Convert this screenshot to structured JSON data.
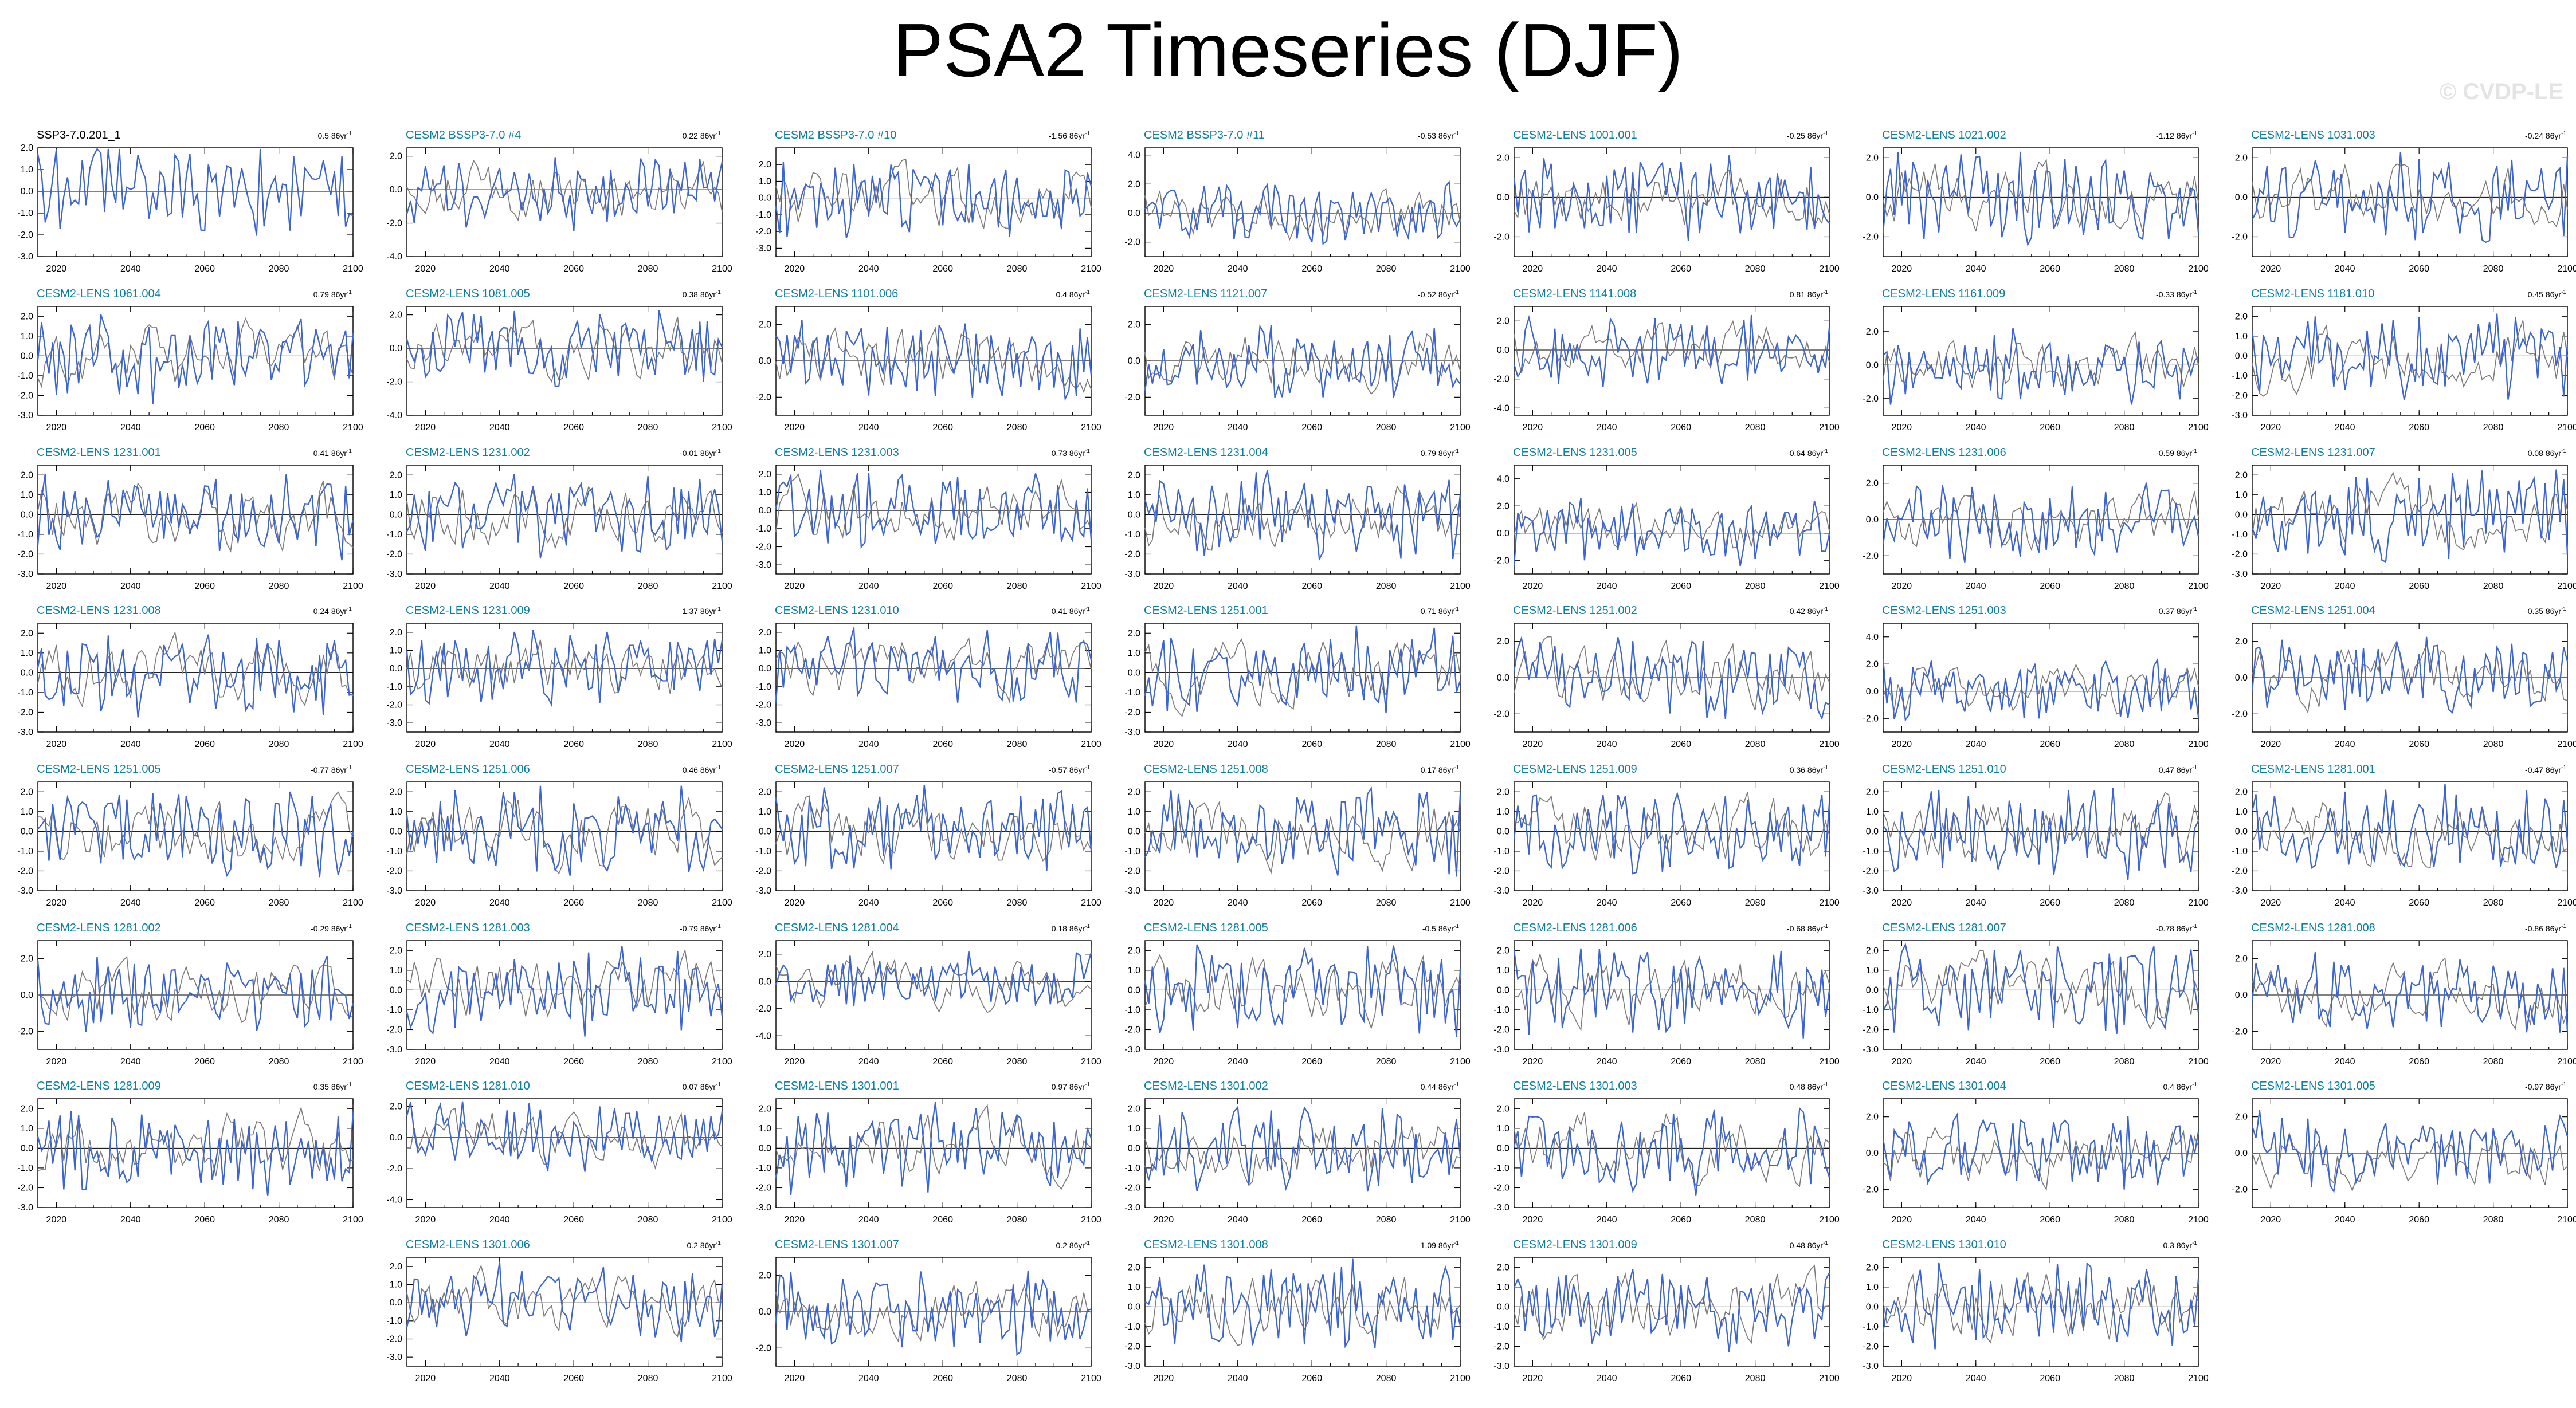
{
  "title": "PSA2 Timeseries (DJF)",
  "watermark": "© CVDP-LE",
  "chart_data": {
    "type": "line",
    "xlim": [
      2015,
      2100
    ],
    "xticks": [
      "2020",
      "2040",
      "2060",
      "2080",
      "2100"
    ],
    "colors": {
      "ensemble_member": "#3c64d2",
      "ensemble_mean": "#7c7c7c",
      "obs_title": "#000000",
      "member_title": "#0b7fa6"
    },
    "grid": false,
    "note_series": "Each panel: member PSA2 index (blue) with ensemble-mean index (grey), DJF 2015-2100; values are approximate.",
    "panels": [
      {
        "title": "SSP3-7.0.201_1",
        "trend": "0.5 86yr",
        "ylim": [
          -3,
          2
        ],
        "yticks": [
          "2.0",
          "1.0",
          "0.0",
          "-1.0",
          "-2.0",
          "-3.0"
        ],
        "seed": 11,
        "amp": 1.1,
        "obs": true
      },
      {
        "title": "CESM2 BSSP3-7.0 #4",
        "trend": "0.22 86yr",
        "ylim": [
          -4,
          2.5
        ],
        "yticks": [
          "2.0",
          "0.0",
          "-2.0",
          "-4.0"
        ],
        "seed": 12,
        "amp": 1.2
      },
      {
        "title": "CESM2 BSSP3-7.0 #10",
        "trend": "-1.56 86yr",
        "ylim": [
          -3.5,
          3
        ],
        "yticks": [
          "2.0",
          "1.0",
          "0.0",
          "-1.0",
          "-2.0",
          "-3.0"
        ],
        "seed": 13,
        "amp": 1.2
      },
      {
        "title": "CESM2 BSSP3-7.0 #11",
        "trend": "-0.53 86yr",
        "ylim": [
          -3,
          4.5
        ],
        "yticks": [
          "4.0",
          "2.0",
          "0.0",
          "-2.0"
        ],
        "seed": 14,
        "amp": 1.1
      },
      {
        "title": "CESM2-LENS 1001.001",
        "trend": "-0.25 86yr",
        "ylim": [
          -3,
          2.5
        ],
        "yticks": [
          "2.0",
          "0.0",
          "-2.0"
        ],
        "seed": 15,
        "amp": 1.1
      },
      {
        "title": "CESM2-LENS 1021.002",
        "trend": "-1.12 86yr",
        "ylim": [
          -3,
          2.5
        ],
        "yticks": [
          "2.0",
          "0.0",
          "-2.0"
        ],
        "seed": 16,
        "amp": 1.1
      },
      {
        "title": "CESM2-LENS 1031.003",
        "trend": "-0.24 86yr",
        "ylim": [
          -3,
          2.5
        ],
        "yticks": [
          "2.0",
          "0.0",
          "-2.0"
        ],
        "seed": 17,
        "amp": 1.1
      },
      {
        "title": "CESM2-LENS 1061.004",
        "trend": "0.79 86yr",
        "ylim": [
          -3,
          2.5
        ],
        "yticks": [
          "2.0",
          "1.0",
          "0.0",
          "-1.0",
          "-2.0",
          "-3.0"
        ],
        "seed": 18,
        "amp": 1.1
      },
      {
        "title": "CESM2-LENS 1081.005",
        "trend": "0.38 86yr",
        "ylim": [
          -4,
          2.5
        ],
        "yticks": [
          "2.0",
          "0.0",
          "-2.0",
          "-4.0"
        ],
        "seed": 19,
        "amp": 1.2
      },
      {
        "title": "CESM2-LENS 1101.006",
        "trend": "0.4 86yr",
        "ylim": [
          -3,
          3
        ],
        "yticks": [
          "2.0",
          "0.0",
          "-2.0"
        ],
        "seed": 20,
        "amp": 1.1
      },
      {
        "title": "CESM2-LENS 1121.007",
        "trend": "-0.52 86yr",
        "ylim": [
          -3,
          3
        ],
        "yticks": [
          "2.0",
          "0.0",
          "-2.0"
        ],
        "seed": 21,
        "amp": 1.1
      },
      {
        "title": "CESM2-LENS 1141.008",
        "trend": "0.81 86yr",
        "ylim": [
          -4.5,
          3
        ],
        "yticks": [
          "2.0",
          "0.0",
          "-2.0",
          "-4.0"
        ],
        "seed": 22,
        "amp": 1.2
      },
      {
        "title": "CESM2-LENS 1161.009",
        "trend": "-0.33 86yr",
        "ylim": [
          -3,
          3.5
        ],
        "yticks": [
          "2.0",
          "0.0",
          "-2.0"
        ],
        "seed": 23,
        "amp": 1.1
      },
      {
        "title": "CESM2-LENS 1181.010",
        "trend": "0.45 86yr",
        "ylim": [
          -3,
          2.5
        ],
        "yticks": [
          "2.0",
          "1.0",
          "0.0",
          "-1.0",
          "-2.0",
          "-3.0"
        ],
        "seed": 24,
        "amp": 1.1
      },
      {
        "title": "CESM2-LENS 1231.001",
        "trend": "0.41 86yr",
        "ylim": [
          -3,
          2.5
        ],
        "yticks": [
          "2.0",
          "1.0",
          "0.0",
          "-1.0",
          "-2.0",
          "-3.0"
        ],
        "seed": 25,
        "amp": 1.1
      },
      {
        "title": "CESM2-LENS 1231.002",
        "trend": "-0.01 86yr",
        "ylim": [
          -3,
          2.5
        ],
        "yticks": [
          "2.0",
          "1.0",
          "0.0",
          "-1.0",
          "-2.0",
          "-3.0"
        ],
        "seed": 26,
        "amp": 1.1
      },
      {
        "title": "CESM2-LENS 1231.003",
        "trend": "0.73 86yr",
        "ylim": [
          -3.5,
          2.5
        ],
        "yticks": [
          "2.0",
          "1.0",
          "0.0",
          "-1.0",
          "-2.0",
          "-3.0"
        ],
        "seed": 27,
        "amp": 1.1
      },
      {
        "title": "CESM2-LENS 1231.004",
        "trend": "0.79 86yr",
        "ylim": [
          -3,
          2.5
        ],
        "yticks": [
          "2.0",
          "1.0",
          "0.0",
          "-1.0",
          "-2.0",
          "-3.0"
        ],
        "seed": 28,
        "amp": 1.1
      },
      {
        "title": "CESM2-LENS 1231.005",
        "trend": "-0.64 86yr",
        "ylim": [
          -3,
          5
        ],
        "yticks": [
          "4.0",
          "2.0",
          "0.0",
          "-2.0"
        ],
        "seed": 29,
        "amp": 1.2
      },
      {
        "title": "CESM2-LENS 1231.006",
        "trend": "-0.59 86yr",
        "ylim": [
          -3,
          3
        ],
        "yticks": [
          "2.0",
          "0.0",
          "-2.0"
        ],
        "seed": 30,
        "amp": 1.1
      },
      {
        "title": "CESM2-LENS 1231.007",
        "trend": "0.08 86yr",
        "ylim": [
          -3,
          2.5
        ],
        "yticks": [
          "2.0",
          "1.0",
          "0.0",
          "-1.0",
          "-2.0",
          "-3.0"
        ],
        "seed": 31,
        "amp": 1.1
      },
      {
        "title": "CESM2-LENS 1231.008",
        "trend": "0.24 86yr",
        "ylim": [
          -3,
          2.5
        ],
        "yticks": [
          "2.0",
          "1.0",
          "0.0",
          "-1.0",
          "-2.0",
          "-3.0"
        ],
        "seed": 32,
        "amp": 1.1
      },
      {
        "title": "CESM2-LENS 1231.009",
        "trend": "1.37 86yr",
        "ylim": [
          -3.5,
          2.5
        ],
        "yticks": [
          "2.0",
          "1.0",
          "0.0",
          "-1.0",
          "-2.0",
          "-3.0"
        ],
        "seed": 33,
        "amp": 1.1
      },
      {
        "title": "CESM2-LENS 1231.010",
        "trend": "0.41 86yr",
        "ylim": [
          -3.5,
          2.5
        ],
        "yticks": [
          "2.0",
          "1.0",
          "0.0",
          "-1.0",
          "-2.0",
          "-3.0"
        ],
        "seed": 34,
        "amp": 1.1
      },
      {
        "title": "CESM2-LENS 1251.001",
        "trend": "-0.71 86yr",
        "ylim": [
          -3,
          2.5
        ],
        "yticks": [
          "2.0",
          "1.0",
          "0.0",
          "-1.0",
          "-2.0",
          "-3.0"
        ],
        "seed": 35,
        "amp": 1.1
      },
      {
        "title": "CESM2-LENS 1251.002",
        "trend": "-0.42 86yr",
        "ylim": [
          -3,
          3
        ],
        "yticks": [
          "2.0",
          "0.0",
          "-2.0"
        ],
        "seed": 36,
        "amp": 1.1
      },
      {
        "title": "CESM2-LENS 1251.003",
        "trend": "-0.37 86yr",
        "ylim": [
          -3,
          5
        ],
        "yticks": [
          "4.0",
          "2.0",
          "0.0",
          "-2.0"
        ],
        "seed": 37,
        "amp": 1.2
      },
      {
        "title": "CESM2-LENS 1251.004",
        "trend": "-0.35 86yr",
        "ylim": [
          -3,
          3
        ],
        "yticks": [
          "2.0",
          "0.0",
          "-2.0"
        ],
        "seed": 38,
        "amp": 1.1
      },
      {
        "title": "CESM2-LENS 1251.005",
        "trend": "-0.77 86yr",
        "ylim": [
          -3,
          2.5
        ],
        "yticks": [
          "2.0",
          "1.0",
          "0.0",
          "-1.0",
          "-2.0",
          "-3.0"
        ],
        "seed": 39,
        "amp": 1.1
      },
      {
        "title": "CESM2-LENS 1251.006",
        "trend": "0.46 86yr",
        "ylim": [
          -3,
          2.5
        ],
        "yticks": [
          "2.0",
          "1.0",
          "0.0",
          "-1.0",
          "-2.0",
          "-3.0"
        ],
        "seed": 40,
        "amp": 1.1
      },
      {
        "title": "CESM2-LENS 1251.007",
        "trend": "-0.57 86yr",
        "ylim": [
          -3,
          2.5
        ],
        "yticks": [
          "2.0",
          "1.0",
          "0.0",
          "-1.0",
          "-2.0",
          "-3.0"
        ],
        "seed": 41,
        "amp": 1.1
      },
      {
        "title": "CESM2-LENS 1251.008",
        "trend": "0.17 86yr",
        "ylim": [
          -3,
          2.5
        ],
        "yticks": [
          "2.0",
          "1.0",
          "0.0",
          "-1.0",
          "-2.0",
          "-3.0"
        ],
        "seed": 42,
        "amp": 1.1
      },
      {
        "title": "CESM2-LENS 1251.009",
        "trend": "0.36 86yr",
        "ylim": [
          -3,
          2.5
        ],
        "yticks": [
          "2.0",
          "1.0",
          "0.0",
          "-1.0",
          "-2.0",
          "-3.0"
        ],
        "seed": 43,
        "amp": 1.1
      },
      {
        "title": "CESM2-LENS 1251.010",
        "trend": "0.47 86yr",
        "ylim": [
          -3,
          2.5
        ],
        "yticks": [
          "2.0",
          "1.0",
          "0.0",
          "-1.0",
          "-2.0",
          "-3.0"
        ],
        "seed": 44,
        "amp": 1.1
      },
      {
        "title": "CESM2-LENS 1281.001",
        "trend": "-0.47 86yr",
        "ylim": [
          -3,
          2.5
        ],
        "yticks": [
          "2.0",
          "1.0",
          "0.0",
          "-1.0",
          "-2.0",
          "-3.0"
        ],
        "seed": 45,
        "amp": 1.1
      },
      {
        "title": "CESM2-LENS 1281.002",
        "trend": "-0.29 86yr",
        "ylim": [
          -3,
          3
        ],
        "yticks": [
          "2.0",
          "0.0",
          "-2.0"
        ],
        "seed": 46,
        "amp": 1.1
      },
      {
        "title": "CESM2-LENS 1281.003",
        "trend": "-0.79 86yr",
        "ylim": [
          -3,
          2.5
        ],
        "yticks": [
          "2.0",
          "1.0",
          "0.0",
          "-1.0",
          "-2.0",
          "-3.0"
        ],
        "seed": 47,
        "amp": 1.1
      },
      {
        "title": "CESM2-LENS 1281.004",
        "trend": "0.18 86yr",
        "ylim": [
          -5,
          3
        ],
        "yticks": [
          "2.0",
          "0.0",
          "-2.0",
          "-4.0"
        ],
        "seed": 48,
        "amp": 1.2
      },
      {
        "title": "CESM2-LENS 1281.005",
        "trend": "-0.5 86yr",
        "ylim": [
          -3,
          2.5
        ],
        "yticks": [
          "2.0",
          "1.0",
          "0.0",
          "-1.0",
          "-2.0",
          "-3.0"
        ],
        "seed": 49,
        "amp": 1.1
      },
      {
        "title": "CESM2-LENS 1281.006",
        "trend": "-0.68 86yr",
        "ylim": [
          -3,
          2.5
        ],
        "yticks": [
          "2.0",
          "1.0",
          "0.0",
          "-1.0",
          "-2.0",
          "-3.0"
        ],
        "seed": 50,
        "amp": 1.1
      },
      {
        "title": "CESM2-LENS 1281.007",
        "trend": "-0.78 86yr",
        "ylim": [
          -3,
          2.5
        ],
        "yticks": [
          "2.0",
          "1.0",
          "0.0",
          "-1.0",
          "-2.0",
          "-3.0"
        ],
        "seed": 51,
        "amp": 1.1
      },
      {
        "title": "CESM2-LENS 1281.008",
        "trend": "-0.86 86yr",
        "ylim": [
          -3,
          3
        ],
        "yticks": [
          "2.0",
          "0.0",
          "-2.0"
        ],
        "seed": 52,
        "amp": 1.1
      },
      {
        "title": "CESM2-LENS 1281.009",
        "trend": "0.35 86yr",
        "ylim": [
          -3,
          2.5
        ],
        "yticks": [
          "2.0",
          "1.0",
          "0.0",
          "-1.0",
          "-2.0",
          "-3.0"
        ],
        "seed": 53,
        "amp": 1.1
      },
      {
        "title": "CESM2-LENS 1281.010",
        "trend": "0.07 86yr",
        "ylim": [
          -4.5,
          2.5
        ],
        "yticks": [
          "2.0",
          "0.0",
          "-2.0",
          "-4.0"
        ],
        "seed": 54,
        "amp": 1.2
      },
      {
        "title": "CESM2-LENS 1301.001",
        "trend": "0.97 86yr",
        "ylim": [
          -3,
          2.5
        ],
        "yticks": [
          "2.0",
          "1.0",
          "0.0",
          "-1.0",
          "-2.0",
          "-3.0"
        ],
        "seed": 55,
        "amp": 1.1
      },
      {
        "title": "CESM2-LENS 1301.002",
        "trend": "0.44 86yr",
        "ylim": [
          -3,
          2.5
        ],
        "yticks": [
          "2.0",
          "1.0",
          "0.0",
          "-1.0",
          "-2.0",
          "-3.0"
        ],
        "seed": 56,
        "amp": 1.1
      },
      {
        "title": "CESM2-LENS 1301.003",
        "trend": "0.48 86yr",
        "ylim": [
          -3,
          2.5
        ],
        "yticks": [
          "2.0",
          "1.0",
          "0.0",
          "-1.0",
          "-2.0",
          "-3.0"
        ],
        "seed": 57,
        "amp": 1.1
      },
      {
        "title": "CESM2-LENS 1301.004",
        "trend": "0.4 86yr",
        "ylim": [
          -3,
          3
        ],
        "yticks": [
          "2.0",
          "0.0",
          "-2.0"
        ],
        "seed": 58,
        "amp": 1.1
      },
      {
        "title": "CESM2-LENS 1301.005",
        "trend": "-0.97 86yr",
        "ylim": [
          -3,
          3
        ],
        "yticks": [
          "2.0",
          "0.0",
          "-2.0"
        ],
        "seed": 59,
        "amp": 1.1
      },
      {
        "title": "CESM2-LENS 1301.006",
        "trend": "0.2 86yr",
        "ylim": [
          -3.5,
          2.5
        ],
        "yticks": [
          "2.0",
          "1.0",
          "0.0",
          "-1.0",
          "-2.0",
          "-3.0"
        ],
        "seed": 60,
        "amp": 1.1
      },
      {
        "title": "CESM2-LENS 1301.007",
        "trend": "0.2 86yr",
        "ylim": [
          -3,
          3
        ],
        "yticks": [
          "2.0",
          "0.0",
          "-2.0"
        ],
        "seed": 61,
        "amp": 1.1
      },
      {
        "title": "CESM2-LENS 1301.008",
        "trend": "1.09 86yr",
        "ylim": [
          -3,
          2.5
        ],
        "yticks": [
          "2.0",
          "1.0",
          "0.0",
          "-1.0",
          "-2.0",
          "-3.0"
        ],
        "seed": 62,
        "amp": 1.1
      },
      {
        "title": "CESM2-LENS 1301.009",
        "trend": "-0.48 86yr",
        "ylim": [
          -3,
          2.5
        ],
        "yticks": [
          "2.0",
          "1.0",
          "0.0",
          "-1.0",
          "-2.0",
          "-3.0"
        ],
        "seed": 63,
        "amp": 1.1
      },
      {
        "title": "CESM2-LENS 1301.010",
        "trend": "0.3 86yr",
        "ylim": [
          -3,
          2.5
        ],
        "yticks": [
          "2.0",
          "1.0",
          "0.0",
          "-1.0",
          "-2.0",
          "-3.0"
        ],
        "seed": 64,
        "amp": 1.1
      }
    ]
  }
}
